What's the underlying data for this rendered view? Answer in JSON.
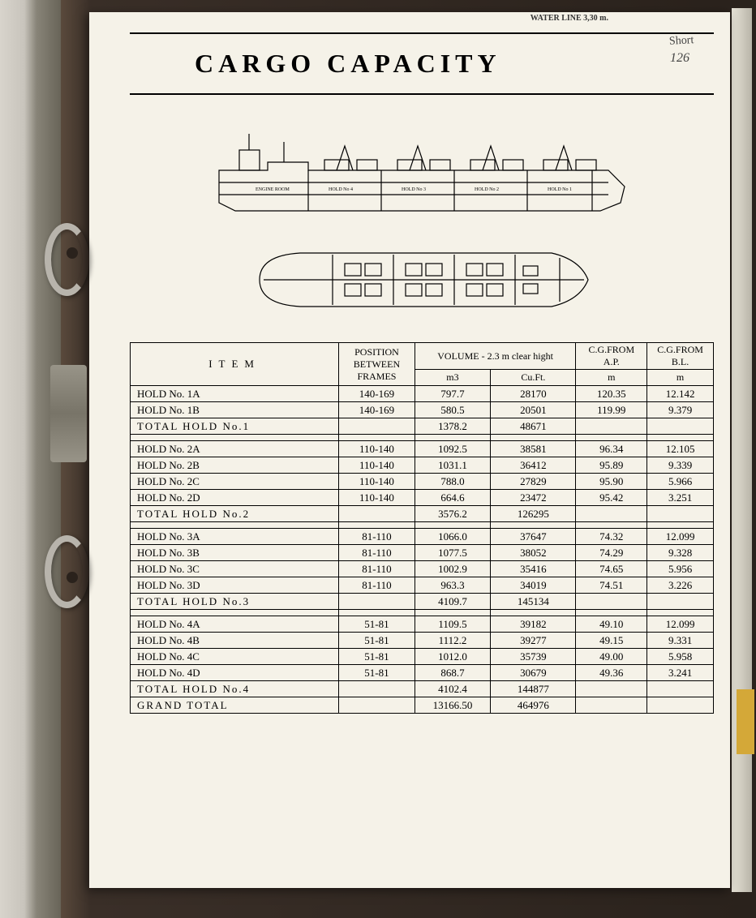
{
  "header": {
    "top_text": "WATER LINE  3,30 m.",
    "title": "CARGO  CAPACITY",
    "handwritten_label": "Short",
    "handwritten_number": "126"
  },
  "diagram": {
    "side_view_labels": [
      "ENGINE ROOM",
      "HOLD No 4",
      "HOLD No 3",
      "HOLD No 2",
      "HOLD No 1"
    ]
  },
  "table": {
    "headers": {
      "item": "ITEM",
      "position": "POSITION BETWEEN FRAMES",
      "volume_header": "VOLUME - 2.3 m clear hight",
      "m3": "m3",
      "cuft": "Cu.Ft.",
      "cg_ap": "C.G.FROM A.P.",
      "cg_bl": "C.G.FROM B.L.",
      "m": "m"
    },
    "rows": [
      {
        "item": "HOLD No. 1A",
        "pos": "140-169",
        "m3": "797.7",
        "cuft": "28170",
        "ap": "120.35",
        "bl": "12.142"
      },
      {
        "item": "HOLD No. 1B",
        "pos": "140-169",
        "m3": "580.5",
        "cuft": "20501",
        "ap": "119.99",
        "bl": "9.379"
      },
      {
        "item": "TOTAL HOLD No.1",
        "pos": "",
        "m3": "1378.2",
        "cuft": "48671",
        "ap": "",
        "bl": "",
        "total": true
      },
      {
        "spacer": true
      },
      {
        "item": "HOLD No. 2A",
        "pos": "110-140",
        "m3": "1092.5",
        "cuft": "38581",
        "ap": "96.34",
        "bl": "12.105"
      },
      {
        "item": "HOLD No. 2B",
        "pos": "110-140",
        "m3": "1031.1",
        "cuft": "36412",
        "ap": "95.89",
        "bl": "9.339"
      },
      {
        "item": "HOLD No. 2C",
        "pos": "110-140",
        "m3": "788.0",
        "cuft": "27829",
        "ap": "95.90",
        "bl": "5.966"
      },
      {
        "item": "HOLD No. 2D",
        "pos": "110-140",
        "m3": "664.6",
        "cuft": "23472",
        "ap": "95.42",
        "bl": "3.251"
      },
      {
        "item": "TOTAL HOLD No.2",
        "pos": "",
        "m3": "3576.2",
        "cuft": "126295",
        "ap": "",
        "bl": "",
        "total": true
      },
      {
        "spacer": true
      },
      {
        "item": "HOLD No. 3A",
        "pos": "81-110",
        "m3": "1066.0",
        "cuft": "37647",
        "ap": "74.32",
        "bl": "12.099"
      },
      {
        "item": "HOLD No. 3B",
        "pos": "81-110",
        "m3": "1077.5",
        "cuft": "38052",
        "ap": "74.29",
        "bl": "9.328"
      },
      {
        "item": "HOLD No. 3C",
        "pos": "81-110",
        "m3": "1002.9",
        "cuft": "35416",
        "ap": "74.65",
        "bl": "5.956"
      },
      {
        "item": "HOLD No. 3D",
        "pos": "81-110",
        "m3": "963.3",
        "cuft": "34019",
        "ap": "74.51",
        "bl": "3.226"
      },
      {
        "item": "TOTAL HOLD No.3",
        "pos": "",
        "m3": "4109.7",
        "cuft": "145134",
        "ap": "",
        "bl": "",
        "total": true
      },
      {
        "spacer": true
      },
      {
        "item": "HOLD No. 4A",
        "pos": "51-81",
        "m3": "1109.5",
        "cuft": "39182",
        "ap": "49.10",
        "bl": "12.099"
      },
      {
        "item": "HOLD No. 4B",
        "pos": "51-81",
        "m3": "1112.2",
        "cuft": "39277",
        "ap": "49.15",
        "bl": "9.331"
      },
      {
        "item": "HOLD No. 4C",
        "pos": "51-81",
        "m3": "1012.0",
        "cuft": "35739",
        "ap": "49.00",
        "bl": "5.958"
      },
      {
        "item": "HOLD No. 4D",
        "pos": "51-81",
        "m3": "868.7",
        "cuft": "30679",
        "ap": "49.36",
        "bl": "3.241"
      },
      {
        "item": "TOTAL HOLD No.4",
        "pos": "",
        "m3": "4102.4",
        "cuft": "144877",
        "ap": "",
        "bl": "",
        "total": true
      },
      {
        "item": "GRAND TOTAL",
        "pos": "",
        "m3": "13166.50",
        "cuft": "464976",
        "ap": "",
        "bl": "",
        "total": true
      }
    ]
  }
}
